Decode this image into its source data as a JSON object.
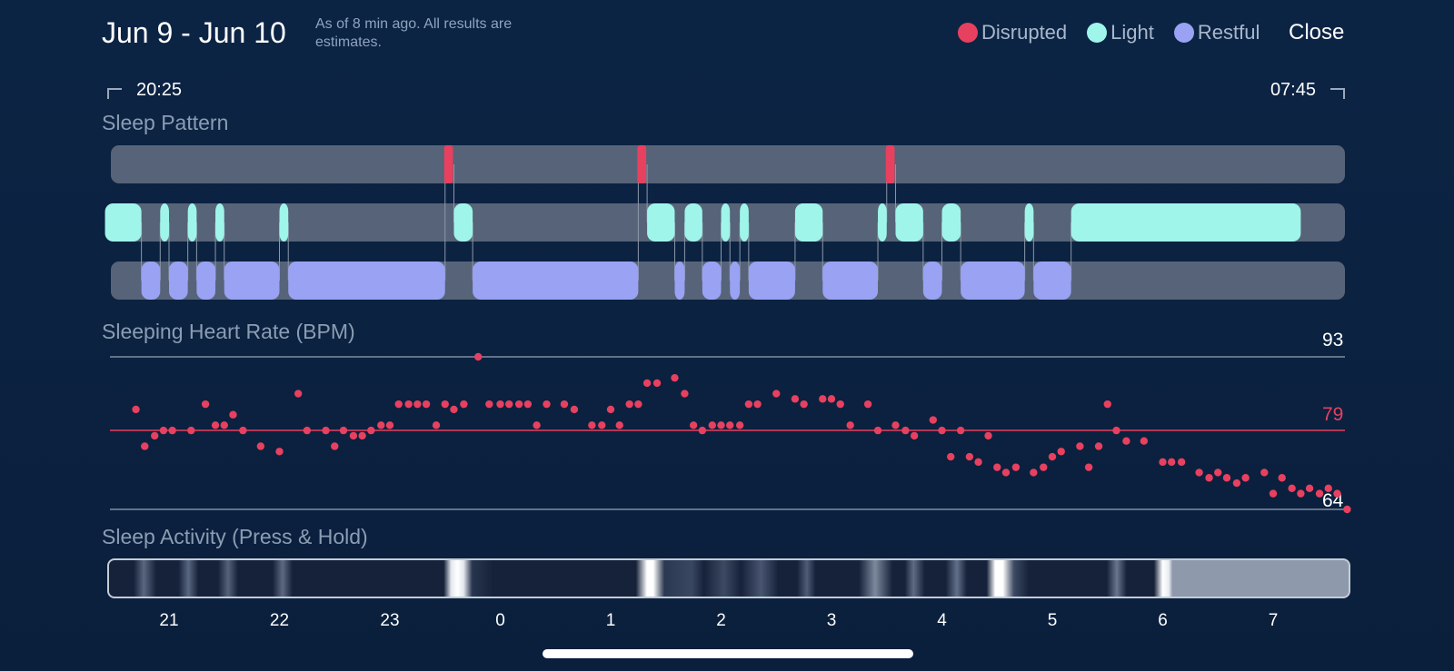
{
  "header": {
    "date_range": "Jun 9 - Jun 10",
    "note": "As of 8 min ago. All results are estimates.",
    "close_label": "Close"
  },
  "legend": [
    {
      "label": "Disrupted",
      "color": "#e8405f"
    },
    {
      "label": "Light",
      "color": "#9ff5ea"
    },
    {
      "label": "Restful",
      "color": "#9aa2f4"
    }
  ],
  "timeline": {
    "start": "20:25",
    "end": "07:45"
  },
  "sleep_pattern": {
    "title": "Sleep Pattern",
    "colors": {
      "track": "#576378",
      "disrupted": "#e8405f",
      "light": "#9ff5ea",
      "restful": "#9aa2f4",
      "connector": "#8c98aa"
    },
    "stages": [
      {
        "stage": "light",
        "start_h": 20.42,
        "end_h": 20.75
      },
      {
        "stage": "restful",
        "start_h": 20.75,
        "end_h": 20.92
      },
      {
        "stage": "light",
        "start_h": 20.92,
        "end_h": 21.0
      },
      {
        "stage": "restful",
        "start_h": 21.0,
        "end_h": 21.17
      },
      {
        "stage": "light",
        "start_h": 21.17,
        "end_h": 21.25
      },
      {
        "stage": "restful",
        "start_h": 21.25,
        "end_h": 21.42
      },
      {
        "stage": "light",
        "start_h": 21.42,
        "end_h": 21.5
      },
      {
        "stage": "restful",
        "start_h": 21.5,
        "end_h": 22.0
      },
      {
        "stage": "light",
        "start_h": 22.0,
        "end_h": 22.08
      },
      {
        "stage": "restful",
        "start_h": 22.08,
        "end_h": 23.5
      },
      {
        "stage": "disrupted",
        "start_h": 23.5,
        "end_h": 23.58
      },
      {
        "stage": "light",
        "start_h": 23.58,
        "end_h": 23.75
      },
      {
        "stage": "restful",
        "start_h": 23.75,
        "end_h": 25.25
      },
      {
        "stage": "disrupted",
        "start_h": 25.25,
        "end_h": 25.33
      },
      {
        "stage": "light",
        "start_h": 25.33,
        "end_h": 25.58
      },
      {
        "stage": "restful",
        "start_h": 25.58,
        "end_h": 25.67
      },
      {
        "stage": "light",
        "start_h": 25.67,
        "end_h": 25.83
      },
      {
        "stage": "restful",
        "start_h": 25.83,
        "end_h": 26.0
      },
      {
        "stage": "light",
        "start_h": 26.0,
        "end_h": 26.08
      },
      {
        "stage": "restful",
        "start_h": 26.08,
        "end_h": 26.17
      },
      {
        "stage": "light",
        "start_h": 26.17,
        "end_h": 26.25
      },
      {
        "stage": "restful",
        "start_h": 26.25,
        "end_h": 26.67
      },
      {
        "stage": "light",
        "start_h": 26.67,
        "end_h": 26.92
      },
      {
        "stage": "restful",
        "start_h": 26.92,
        "end_h": 27.42
      },
      {
        "stage": "light",
        "start_h": 27.42,
        "end_h": 27.5
      },
      {
        "stage": "disrupted",
        "start_h": 27.5,
        "end_h": 27.58
      },
      {
        "stage": "light",
        "start_h": 27.58,
        "end_h": 27.83
      },
      {
        "stage": "restful",
        "start_h": 27.83,
        "end_h": 28.0
      },
      {
        "stage": "light",
        "start_h": 28.0,
        "end_h": 28.17
      },
      {
        "stage": "restful",
        "start_h": 28.17,
        "end_h": 28.75
      },
      {
        "stage": "light",
        "start_h": 28.75,
        "end_h": 28.83
      },
      {
        "stage": "restful",
        "start_h": 28.83,
        "end_h": 29.17
      },
      {
        "stage": "light",
        "start_h": 29.17,
        "end_h": 31.25
      }
    ]
  },
  "heart_rate": {
    "title": "Sleeping Heart Rate (BPM)",
    "max_label": "93",
    "avg_label": "79",
    "min_label": "64",
    "colors": {
      "dot": "#e8405f",
      "avg_line": "#e8405f",
      "bound_line": "#7f8ea3"
    },
    "chart_data": {
      "type": "scatter",
      "x_unit": "hours",
      "y_range": [
        64,
        93
      ],
      "points": [
        [
          20.7,
          83
        ],
        [
          20.78,
          76
        ],
        [
          20.87,
          78
        ],
        [
          20.95,
          79
        ],
        [
          21.03,
          79
        ],
        [
          21.2,
          79
        ],
        [
          21.33,
          84
        ],
        [
          21.42,
          80
        ],
        [
          21.5,
          80
        ],
        [
          21.58,
          82
        ],
        [
          21.67,
          79
        ],
        [
          21.83,
          76
        ],
        [
          22.0,
          75
        ],
        [
          22.17,
          86
        ],
        [
          22.25,
          79
        ],
        [
          22.42,
          79
        ],
        [
          22.5,
          76
        ],
        [
          22.58,
          79
        ],
        [
          22.67,
          78
        ],
        [
          22.75,
          78
        ],
        [
          22.83,
          79
        ],
        [
          22.92,
          80
        ],
        [
          23.0,
          80
        ],
        [
          23.08,
          84
        ],
        [
          23.17,
          84
        ],
        [
          23.25,
          84
        ],
        [
          23.33,
          84
        ],
        [
          23.42,
          80
        ],
        [
          23.5,
          84
        ],
        [
          23.58,
          83
        ],
        [
          23.67,
          84
        ],
        [
          23.8,
          93
        ],
        [
          23.9,
          84
        ],
        [
          24.0,
          84
        ],
        [
          24.08,
          84
        ],
        [
          24.17,
          84
        ],
        [
          24.25,
          84
        ],
        [
          24.33,
          80
        ],
        [
          24.42,
          84
        ],
        [
          24.58,
          84
        ],
        [
          24.67,
          83
        ],
        [
          24.83,
          80
        ],
        [
          24.92,
          80
        ],
        [
          25.0,
          83
        ],
        [
          25.08,
          80
        ],
        [
          25.17,
          84
        ],
        [
          25.25,
          84
        ],
        [
          25.33,
          88
        ],
        [
          25.42,
          88
        ],
        [
          25.58,
          89
        ],
        [
          25.67,
          86
        ],
        [
          25.75,
          80
        ],
        [
          25.83,
          79
        ],
        [
          25.92,
          80
        ],
        [
          26.0,
          80
        ],
        [
          26.08,
          80
        ],
        [
          26.17,
          80
        ],
        [
          26.25,
          84
        ],
        [
          26.33,
          84
        ],
        [
          26.5,
          86
        ],
        [
          26.67,
          85
        ],
        [
          26.75,
          84
        ],
        [
          26.92,
          85
        ],
        [
          27.0,
          85
        ],
        [
          27.08,
          84
        ],
        [
          27.17,
          80
        ],
        [
          27.33,
          84
        ],
        [
          27.42,
          79
        ],
        [
          27.58,
          80
        ],
        [
          27.67,
          79
        ],
        [
          27.75,
          78
        ],
        [
          27.92,
          81
        ],
        [
          28.0,
          79
        ],
        [
          28.08,
          74
        ],
        [
          28.17,
          79
        ],
        [
          28.25,
          74
        ],
        [
          28.33,
          73
        ],
        [
          28.42,
          78
        ],
        [
          28.5,
          72
        ],
        [
          28.58,
          71
        ],
        [
          28.67,
          72
        ],
        [
          28.83,
          71
        ],
        [
          28.92,
          72
        ],
        [
          29.0,
          74
        ],
        [
          29.08,
          75
        ],
        [
          29.25,
          76
        ],
        [
          29.33,
          72
        ],
        [
          29.42,
          76
        ],
        [
          29.5,
          84
        ],
        [
          29.58,
          79
        ],
        [
          29.67,
          77
        ],
        [
          29.83,
          77
        ],
        [
          30.0,
          73
        ],
        [
          30.08,
          73
        ],
        [
          30.17,
          73
        ],
        [
          30.33,
          71
        ],
        [
          30.42,
          70
        ],
        [
          30.5,
          71
        ],
        [
          30.58,
          70
        ],
        [
          30.67,
          69
        ],
        [
          30.75,
          70
        ],
        [
          30.92,
          71
        ],
        [
          31.0,
          67
        ],
        [
          31.08,
          70
        ],
        [
          31.17,
          68
        ],
        [
          31.25,
          67
        ],
        [
          31.33,
          68
        ],
        [
          31.42,
          67
        ],
        [
          31.5,
          68
        ],
        [
          31.58,
          67
        ],
        [
          31.67,
          64
        ]
      ]
    }
  },
  "activity": {
    "title": "Sleep Activity (Press & Hold)",
    "axis": {
      "ticks": [
        {
          "h": 21.0,
          "label": "21"
        },
        {
          "h": 22.0,
          "label": "22"
        },
        {
          "h": 23.0,
          "label": "23"
        },
        {
          "h": 24.0,
          "label": "0"
        },
        {
          "h": 25.0,
          "label": "1"
        },
        {
          "h": 26.0,
          "label": "2"
        },
        {
          "h": 27.0,
          "label": "3"
        },
        {
          "h": 28.0,
          "label": "4"
        },
        {
          "h": 29.0,
          "label": "5"
        },
        {
          "h": 30.0,
          "label": "6"
        },
        {
          "h": 31.0,
          "label": "7"
        }
      ]
    }
  }
}
